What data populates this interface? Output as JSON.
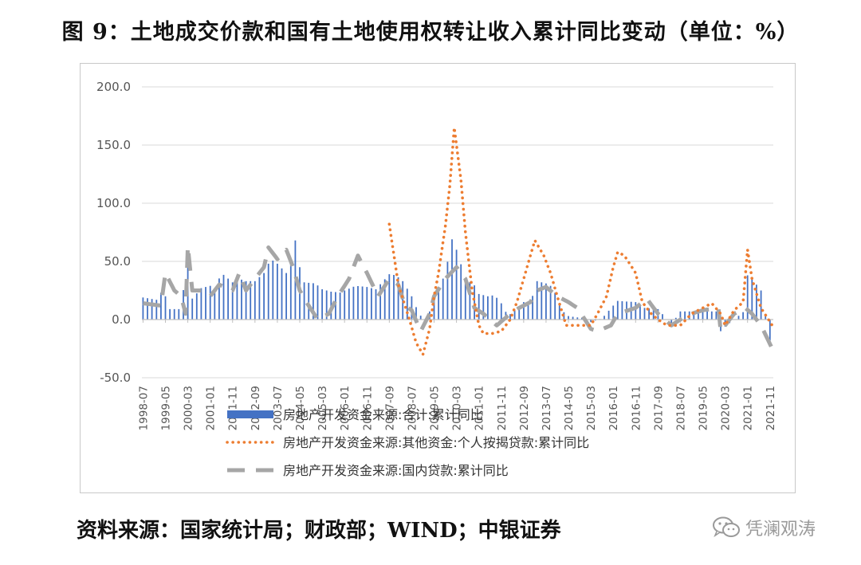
{
  "title": "图 9：土地成交价款和国有土地使用权转让收入累计同比变动（单位：%）",
  "source": "资料来源：国家统计局；财政部；WIND；中银证券",
  "watermark": "凭澜观涛",
  "watermark_icon": "wechat-icon",
  "colors": {
    "bar": "#4472c4",
    "orange": "#ed7d31",
    "gray": "#a6a6a6",
    "grid": "#d9d9d9",
    "axis": "#bfbfbf"
  },
  "chart_data": {
    "type": "bar+line",
    "title": "",
    "xlabel": "",
    "ylabel": "",
    "ylim": [
      -50,
      200
    ],
    "yticks": [
      "-50.0",
      "0.0",
      "50.0",
      "100.0",
      "150.0",
      "200.0"
    ],
    "ytick_values": [
      -50,
      0,
      50,
      100,
      150,
      200
    ],
    "grid": true,
    "legend_placement": "bottom",
    "x_start": "1998-07",
    "x_end": "2021-12",
    "xtick_labels": [
      "1998-07",
      "1999-05",
      "2000-03",
      "2001-01",
      "2001-11",
      "2002-09",
      "2003-07",
      "2004-05",
      "2005-03",
      "2006-01",
      "2006-11",
      "2007-09",
      "2008-07",
      "2009-05",
      "2010-03",
      "2011-01",
      "2011-11",
      "2012-09",
      "2013-07",
      "2014-05",
      "2015-03",
      "2016-01",
      "2016-11",
      "2017-09",
      "2018-07",
      "2019-05",
      "2020-03",
      "2021-01",
      "2021-11"
    ],
    "series": [
      {
        "name": "房地产开发资金来源:合计:累计同比",
        "style": "bar",
        "points": [
          [
            "1998-07",
            19
          ],
          [
            "1999-01",
            17
          ],
          [
            "1999-03",
            23
          ],
          [
            "1999-05",
            20
          ],
          [
            "1999-07",
            9
          ],
          [
            "1999-12",
            9
          ],
          [
            "2000-03",
            58
          ],
          [
            "2000-05",
            18
          ],
          [
            "2000-09",
            27
          ],
          [
            "2001-01",
            29
          ],
          [
            "2001-03",
            26
          ],
          [
            "2001-06",
            40
          ],
          [
            "2001-11",
            32
          ],
          [
            "2002-02",
            35
          ],
          [
            "2002-05",
            33
          ],
          [
            "2002-09",
            33
          ],
          [
            "2003-01",
            40
          ],
          [
            "2003-04",
            52
          ],
          [
            "2003-07",
            48
          ],
          [
            "2003-12",
            38
          ],
          [
            "2004-03",
            68
          ],
          [
            "2004-05",
            45
          ],
          [
            "2004-07",
            32
          ],
          [
            "2004-12",
            31
          ],
          [
            "2005-03",
            26
          ],
          [
            "2005-07",
            24
          ],
          [
            "2005-12",
            23
          ],
          [
            "2006-01",
            25
          ],
          [
            "2006-06",
            29
          ],
          [
            "2006-11",
            28
          ],
          [
            "2007-03",
            26
          ],
          [
            "2007-09",
            39
          ],
          [
            "2007-12",
            38
          ],
          [
            "2008-03",
            33
          ],
          [
            "2008-07",
            20
          ],
          [
            "2008-10",
            6
          ],
          [
            "2009-01",
            -2
          ],
          [
            "2009-05",
            16
          ],
          [
            "2009-10",
            40
          ],
          [
            "2010-01",
            69
          ],
          [
            "2010-03",
            60
          ],
          [
            "2010-07",
            35
          ],
          [
            "2010-12",
            28
          ],
          [
            "2011-01",
            22
          ],
          [
            "2011-05",
            20
          ],
          [
            "2011-08",
            21
          ],
          [
            "2011-11",
            14
          ],
          [
            "2012-02",
            3
          ],
          [
            "2012-05",
            8
          ],
          [
            "2012-09",
            15
          ],
          [
            "2012-12",
            14
          ],
          [
            "2013-03",
            33
          ],
          [
            "2013-07",
            31
          ],
          [
            "2013-10",
            28
          ],
          [
            "2014-02",
            8
          ],
          [
            "2014-05",
            3
          ],
          [
            "2014-12",
            1
          ],
          [
            "2015-03",
            -2
          ],
          [
            "2015-08",
            1
          ],
          [
            "2016-01",
            12
          ],
          [
            "2016-03",
            16
          ],
          [
            "2016-11",
            15
          ],
          [
            "2017-03",
            10
          ],
          [
            "2017-09",
            9
          ],
          [
            "2018-03",
            -4
          ],
          [
            "2018-07",
            7
          ],
          [
            "2018-12",
            7
          ],
          [
            "2019-03",
            7
          ],
          [
            "2019-05",
            7
          ],
          [
            "2019-12",
            7
          ],
          [
            "2020-01",
            -10
          ],
          [
            "2020-03",
            -6
          ],
          [
            "2020-07",
            0
          ],
          [
            "2020-12",
            8
          ],
          [
            "2021-01",
            38
          ],
          [
            "2021-03",
            35
          ],
          [
            "2021-07",
            25
          ],
          [
            "2021-11",
            -18
          ],
          [
            "2021-12",
            -25
          ]
        ]
      },
      {
        "name": "房地产开发资金来源:其他资金:个人按揭贷款:累计同比",
        "style": "dotted",
        "points": [
          [
            "2007-09",
            82
          ],
          [
            "2008-01",
            30
          ],
          [
            "2008-06",
            0
          ],
          [
            "2008-09",
            -20
          ],
          [
            "2008-12",
            -30
          ],
          [
            "2009-03",
            -8
          ],
          [
            "2009-05",
            20
          ],
          [
            "2009-07",
            40
          ],
          [
            "2009-10",
            80
          ],
          [
            "2009-12",
            115
          ],
          [
            "2010-02",
            165
          ],
          [
            "2010-05",
            120
          ],
          [
            "2010-07",
            75
          ],
          [
            "2010-10",
            25
          ],
          [
            "2011-01",
            -5
          ],
          [
            "2011-03",
            -12
          ],
          [
            "2011-07",
            -12
          ],
          [
            "2011-11",
            -10
          ],
          [
            "2012-03",
            0
          ],
          [
            "2012-06",
            15
          ],
          [
            "2012-09",
            35
          ],
          [
            "2012-12",
            55
          ],
          [
            "2013-02",
            68
          ],
          [
            "2013-06",
            55
          ],
          [
            "2013-09",
            40
          ],
          [
            "2013-12",
            20
          ],
          [
            "2014-04",
            -5
          ],
          [
            "2014-09",
            -5
          ],
          [
            "2015-03",
            -5
          ],
          [
            "2015-06",
            5
          ],
          [
            "2015-10",
            20
          ],
          [
            "2016-01",
            45
          ],
          [
            "2016-03",
            58
          ],
          [
            "2016-06",
            55
          ],
          [
            "2016-11",
            40
          ],
          [
            "2017-02",
            15
          ],
          [
            "2017-06",
            5
          ],
          [
            "2017-09",
            0
          ],
          [
            "2018-01",
            -5
          ],
          [
            "2018-07",
            -5
          ],
          [
            "2018-12",
            5
          ],
          [
            "2019-05",
            10
          ],
          [
            "2019-09",
            14
          ],
          [
            "2020-01",
            5
          ],
          [
            "2020-03",
            -5
          ],
          [
            "2020-07",
            8
          ],
          [
            "2020-11",
            15
          ],
          [
            "2021-01",
            60
          ],
          [
            "2021-03",
            35
          ],
          [
            "2021-07",
            10
          ],
          [
            "2021-12",
            -5
          ]
        ]
      },
      {
        "name": "房地产开发资金来源:国内贷款:累计同比",
        "style": "dashed",
        "points": [
          [
            "1998-07",
            14
          ],
          [
            "1999-03",
            12
          ],
          [
            "1999-05",
            40
          ],
          [
            "1999-09",
            25
          ],
          [
            "1999-12",
            20
          ],
          [
            "2000-02",
            5
          ],
          [
            "2000-03",
            63
          ],
          [
            "2000-05",
            25
          ],
          [
            "2000-09",
            25
          ],
          [
            "2001-01",
            20
          ],
          [
            "2001-05",
            30
          ],
          [
            "2001-11",
            25
          ],
          [
            "2002-02",
            40
          ],
          [
            "2002-05",
            25
          ],
          [
            "2002-09",
            35
          ],
          [
            "2003-01",
            45
          ],
          [
            "2003-03",
            62
          ],
          [
            "2003-07",
            52
          ],
          [
            "2003-11",
            60
          ],
          [
            "2004-02",
            45
          ],
          [
            "2004-05",
            25
          ],
          [
            "2004-08",
            15
          ],
          [
            "2005-01",
            0
          ],
          [
            "2005-06",
            5
          ],
          [
            "2005-10",
            20
          ],
          [
            "2006-03",
            35
          ],
          [
            "2006-07",
            55
          ],
          [
            "2006-11",
            40
          ],
          [
            "2007-04",
            20
          ],
          [
            "2007-09",
            35
          ],
          [
            "2008-01",
            30
          ],
          [
            "2008-04",
            12
          ],
          [
            "2008-07",
            8
          ],
          [
            "2008-11",
            -10
          ],
          [
            "2009-03",
            5
          ],
          [
            "2009-05",
            20
          ],
          [
            "2009-10",
            35
          ],
          [
            "2010-03",
            45
          ],
          [
            "2010-07",
            35
          ],
          [
            "2010-11",
            10
          ],
          [
            "2011-03",
            5
          ],
          [
            "2011-09",
            -5
          ],
          [
            "2012-03",
            5
          ],
          [
            "2012-07",
            10
          ],
          [
            "2012-12",
            15
          ],
          [
            "2013-03",
            25
          ],
          [
            "2013-07",
            28
          ],
          [
            "2013-12",
            20
          ],
          [
            "2014-05",
            15
          ],
          [
            "2014-09",
            10
          ],
          [
            "2015-03",
            -8
          ],
          [
            "2015-06",
            -10
          ],
          [
            "2015-12",
            -5
          ],
          [
            "2016-03",
            5
          ],
          [
            "2016-11",
            10
          ],
          [
            "2017-04",
            18
          ],
          [
            "2017-09",
            5
          ],
          [
            "2018-03",
            -5
          ],
          [
            "2018-07",
            0
          ],
          [
            "2018-12",
            5
          ],
          [
            "2019-05",
            8
          ],
          [
            "2019-12",
            10
          ],
          [
            "2020-01",
            -10
          ],
          [
            "2020-07",
            5
          ],
          [
            "2020-12",
            10
          ],
          [
            "2021-03",
            5
          ],
          [
            "2021-07",
            -5
          ],
          [
            "2021-12",
            -25
          ]
        ]
      }
    ]
  }
}
